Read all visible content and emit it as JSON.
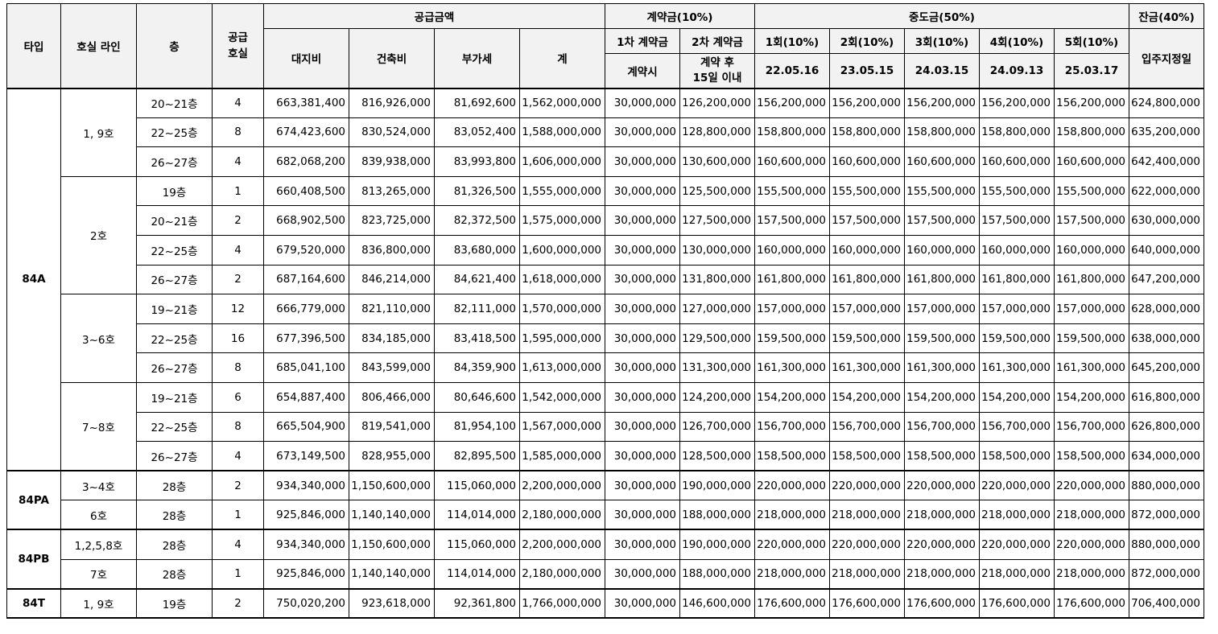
{
  "header": {
    "type": "타입",
    "line": "호실 라인",
    "floor": "층",
    "units": "공급\n호실",
    "supply": "공급금액",
    "land": "대지비",
    "building": "건축비",
    "vat": "부가세",
    "total": "계",
    "contract": "계약금(10%)",
    "c1": "1차 계약금",
    "c1_when": "계약시",
    "c2": "2차 계약금",
    "c2_when": "계약 후\n15일 이내",
    "middle": "중도금(50%)",
    "m1": "1회(10%)",
    "m1_date": "22.05.16",
    "m2": "2회(10%)",
    "m2_date": "23.05.15",
    "m3": "3회(10%)",
    "m3_date": "24.03.15",
    "m4": "4회(10%)",
    "m4_date": "24.09.13",
    "m5": "5회(10%)",
    "m5_date": "25.03.17",
    "balance": "잔금(40%)",
    "balance_when": "입주지정일"
  },
  "rows": [
    {
      "floor": "20~21층",
      "units": "4",
      "land": "663,381,400",
      "building": "816,926,000",
      "vat": "81,692,600",
      "total": "1,562,000,000",
      "c1": "30,000,000",
      "c2": "126,200,000",
      "m1": "156,200,000",
      "m2": "156,200,000",
      "m3": "156,200,000",
      "m4": "156,200,000",
      "m5": "156,200,000",
      "bal": "624,800,000"
    },
    {
      "floor": "22~25층",
      "units": "8",
      "land": "674,423,600",
      "building": "830,524,000",
      "vat": "83,052,400",
      "total": "1,588,000,000",
      "c1": "30,000,000",
      "c2": "128,800,000",
      "m1": "158,800,000",
      "m2": "158,800,000",
      "m3": "158,800,000",
      "m4": "158,800,000",
      "m5": "158,800,000",
      "bal": "635,200,000"
    },
    {
      "floor": "26~27층",
      "units": "4",
      "land": "682,068,200",
      "building": "839,938,000",
      "vat": "83,993,800",
      "total": "1,606,000,000",
      "c1": "30,000,000",
      "c2": "130,600,000",
      "m1": "160,600,000",
      "m2": "160,600,000",
      "m3": "160,600,000",
      "m4": "160,600,000",
      "m5": "160,600,000",
      "bal": "642,400,000"
    },
    {
      "floor": "19층",
      "units": "1",
      "land": "660,408,500",
      "building": "813,265,000",
      "vat": "81,326,500",
      "total": "1,555,000,000",
      "c1": "30,000,000",
      "c2": "125,500,000",
      "m1": "155,500,000",
      "m2": "155,500,000",
      "m3": "155,500,000",
      "m4": "155,500,000",
      "m5": "155,500,000",
      "bal": "622,000,000"
    },
    {
      "floor": "20~21층",
      "units": "2",
      "land": "668,902,500",
      "building": "823,725,000",
      "vat": "82,372,500",
      "total": "1,575,000,000",
      "c1": "30,000,000",
      "c2": "127,500,000",
      "m1": "157,500,000",
      "m2": "157,500,000",
      "m3": "157,500,000",
      "m4": "157,500,000",
      "m5": "157,500,000",
      "bal": "630,000,000"
    },
    {
      "floor": "22~25층",
      "units": "4",
      "land": "679,520,000",
      "building": "836,800,000",
      "vat": "83,680,000",
      "total": "1,600,000,000",
      "c1": "30,000,000",
      "c2": "130,000,000",
      "m1": "160,000,000",
      "m2": "160,000,000",
      "m3": "160,000,000",
      "m4": "160,000,000",
      "m5": "160,000,000",
      "bal": "640,000,000"
    },
    {
      "floor": "26~27층",
      "units": "2",
      "land": "687,164,600",
      "building": "846,214,000",
      "vat": "84,621,400",
      "total": "1,618,000,000",
      "c1": "30,000,000",
      "c2": "131,800,000",
      "m1": "161,800,000",
      "m2": "161,800,000",
      "m3": "161,800,000",
      "m4": "161,800,000",
      "m5": "161,800,000",
      "bal": "647,200,000"
    },
    {
      "floor": "19~21층",
      "units": "12",
      "land": "666,779,000",
      "building": "821,110,000",
      "vat": "82,111,000",
      "total": "1,570,000,000",
      "c1": "30,000,000",
      "c2": "127,000,000",
      "m1": "157,000,000",
      "m2": "157,000,000",
      "m3": "157,000,000",
      "m4": "157,000,000",
      "m5": "157,000,000",
      "bal": "628,000,000"
    },
    {
      "floor": "22~25층",
      "units": "16",
      "land": "677,396,500",
      "building": "834,185,000",
      "vat": "83,418,500",
      "total": "1,595,000,000",
      "c1": "30,000,000",
      "c2": "129,500,000",
      "m1": "159,500,000",
      "m2": "159,500,000",
      "m3": "159,500,000",
      "m4": "159,500,000",
      "m5": "159,500,000",
      "bal": "638,000,000"
    },
    {
      "floor": "26~27층",
      "units": "8",
      "land": "685,041,100",
      "building": "843,599,000",
      "vat": "84,359,900",
      "total": "1,613,000,000",
      "c1": "30,000,000",
      "c2": "131,300,000",
      "m1": "161,300,000",
      "m2": "161,300,000",
      "m3": "161,300,000",
      "m4": "161,300,000",
      "m5": "161,300,000",
      "bal": "645,200,000"
    },
    {
      "floor": "19~21층",
      "units": "6",
      "land": "654,887,400",
      "building": "806,466,000",
      "vat": "80,646,600",
      "total": "1,542,000,000",
      "c1": "30,000,000",
      "c2": "124,200,000",
      "m1": "154,200,000",
      "m2": "154,200,000",
      "m3": "154,200,000",
      "m4": "154,200,000",
      "m5": "154,200,000",
      "bal": "616,800,000"
    },
    {
      "floor": "22~25층",
      "units": "8",
      "land": "665,504,900",
      "building": "819,541,000",
      "vat": "81,954,100",
      "total": "1,567,000,000",
      "c1": "30,000,000",
      "c2": "126,700,000",
      "m1": "156,700,000",
      "m2": "156,700,000",
      "m3": "156,700,000",
      "m4": "156,700,000",
      "m5": "156,700,000",
      "bal": "626,800,000"
    },
    {
      "floor": "26~27층",
      "units": "4",
      "land": "673,149,500",
      "building": "828,955,000",
      "vat": "82,895,500",
      "total": "1,585,000,000",
      "c1": "30,000,000",
      "c2": "128,500,000",
      "m1": "158,500,000",
      "m2": "158,500,000",
      "m3": "158,500,000",
      "m4": "158,500,000",
      "m5": "158,500,000",
      "bal": "634,000,000"
    },
    {
      "floor": "28층",
      "units": "2",
      "land": "934,340,000",
      "building": "1,150,600,000",
      "vat": "115,060,000",
      "total": "2,200,000,000",
      "c1": "30,000,000",
      "c2": "190,000,000",
      "m1": "220,000,000",
      "m2": "220,000,000",
      "m3": "220,000,000",
      "m4": "220,000,000",
      "m5": "220,000,000",
      "bal": "880,000,000"
    },
    {
      "floor": "28층",
      "units": "1",
      "land": "925,846,000",
      "building": "1,140,140,000",
      "vat": "114,014,000",
      "total": "2,180,000,000",
      "c1": "30,000,000",
      "c2": "188,000,000",
      "m1": "218,000,000",
      "m2": "218,000,000",
      "m3": "218,000,000",
      "m4": "218,000,000",
      "m5": "218,000,000",
      "bal": "872,000,000"
    },
    {
      "floor": "28층",
      "units": "4",
      "land": "934,340,000",
      "building": "1,150,600,000",
      "vat": "115,060,000",
      "total": "2,200,000,000",
      "c1": "30,000,000",
      "c2": "190,000,000",
      "m1": "220,000,000",
      "m2": "220,000,000",
      "m3": "220,000,000",
      "m4": "220,000,000",
      "m5": "220,000,000",
      "bal": "880,000,000"
    },
    {
      "floor": "28층",
      "units": "1",
      "land": "925,846,000",
      "building": "1,140,140,000",
      "vat": "114,014,000",
      "total": "2,180,000,000",
      "c1": "30,000,000",
      "c2": "188,000,000",
      "m1": "218,000,000",
      "m2": "218,000,000",
      "m3": "218,000,000",
      "m4": "218,000,000",
      "m5": "218,000,000",
      "bal": "872,000,000"
    },
    {
      "floor": "19층",
      "units": "2",
      "land": "750,020,200",
      "building": "923,618,000",
      "vat": "92,361,800",
      "total": "1,766,000,000",
      "c1": "30,000,000",
      "c2": "146,600,000",
      "m1": "176,600,000",
      "m2": "176,600,000",
      "m3": "176,600,000",
      "m4": "176,600,000",
      "m5": "176,600,000",
      "bal": "706,400,000"
    }
  ],
  "types": [
    "84A",
    "84PA",
    "84PB",
    "84T"
  ],
  "lines": [
    "1, 9호",
    "2호",
    "3~6호",
    "7~8호",
    "3~4호",
    "6호",
    "1,2,5,8호",
    "7호",
    "1, 9호"
  ]
}
